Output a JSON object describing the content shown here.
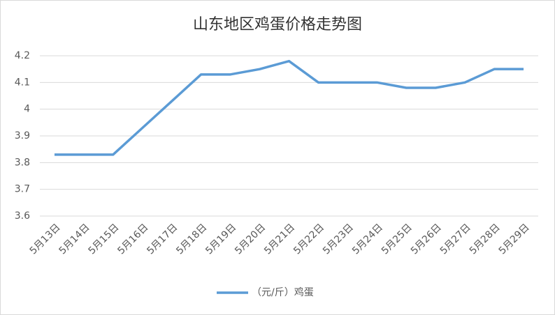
{
  "chart_data": {
    "type": "line",
    "title": "山东地区鸡蛋价格走势图",
    "categories": [
      "5月13日",
      "5月14日",
      "5月15日",
      "5月16日",
      "5月17日",
      "5月18日",
      "5月19日",
      "5月20日",
      "5月21日",
      "5月22日",
      "5月23日",
      "5月24日",
      "5月25日",
      "5月26日",
      "5月27日",
      "5月28日",
      "5月29日"
    ],
    "series": [
      {
        "name": "（元/斤）鸡蛋",
        "color": "#5b9bd5",
        "values": [
          3.83,
          3.83,
          3.83,
          3.93,
          4.03,
          4.13,
          4.13,
          4.15,
          4.18,
          4.1,
          4.1,
          4.1,
          4.08,
          4.08,
          4.1,
          4.15,
          4.15
        ]
      }
    ],
    "ylim": [
      3.6,
      4.2
    ],
    "yticks": [
      3.6,
      3.7,
      3.8,
      3.9,
      4,
      4.1,
      4.2
    ],
    "grid": true,
    "legend": "bottom"
  }
}
